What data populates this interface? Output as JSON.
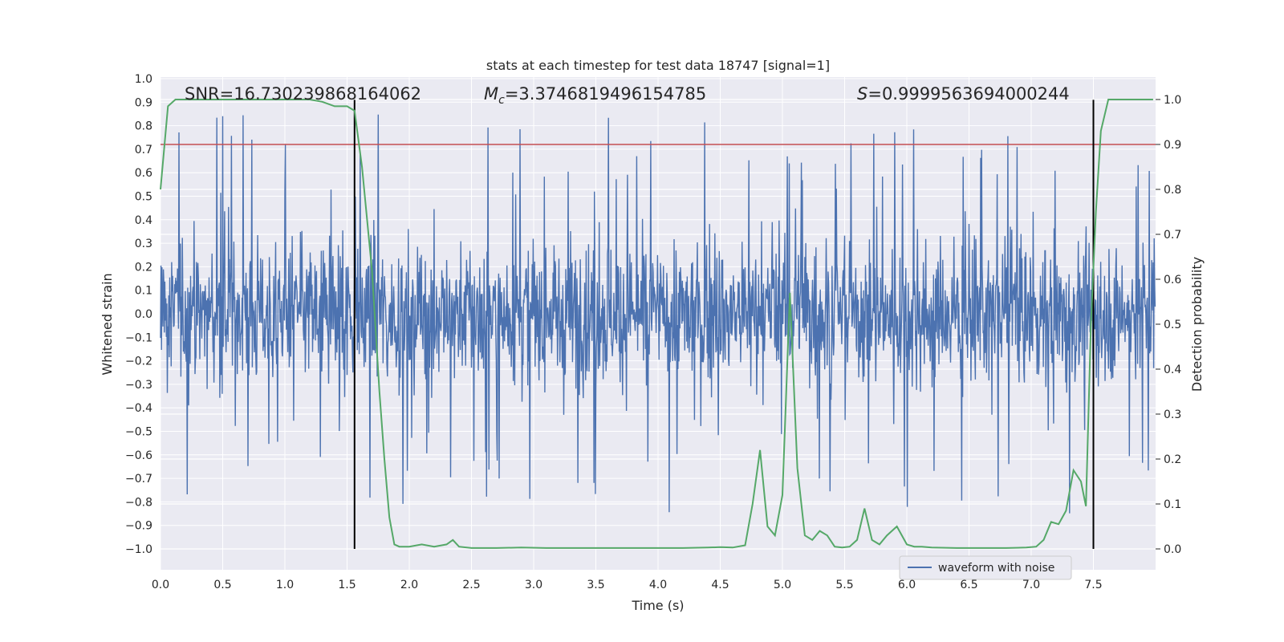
{
  "chart_data": {
    "type": "line",
    "title": "stats at each timestep for test data 18747 [signal=1]",
    "xlabel": "Time (s)",
    "ylabel": "Whitened strain",
    "y2label": "Detection probability",
    "xlim": [
      0.0,
      8.0
    ],
    "ylim": [
      -1.0,
      1.0
    ],
    "y2lim": [
      0.0,
      1.0
    ],
    "grid": true,
    "legend_position": "lower-center-right",
    "x_ticks": [
      "0.0",
      "0.5",
      "1.0",
      "1.5",
      "2.0",
      "2.5",
      "3.0",
      "3.5",
      "4.0",
      "4.5",
      "5.0",
      "5.5",
      "6.0",
      "6.5",
      "7.0",
      "7.5"
    ],
    "y_ticks": [
      "1.0",
      "0.9",
      "0.8",
      "0.7",
      "0.6",
      "0.5",
      "0.4",
      "0.3",
      "0.2",
      "0.1",
      "0.0",
      "−0.1",
      "−0.2",
      "−0.3",
      "−0.4",
      "−0.5",
      "−0.6",
      "−0.7",
      "−0.8",
      "−0.9",
      "−1.0"
    ],
    "y2_ticks": [
      "1.0",
      "0.9",
      "0.8",
      "0.7",
      "0.6",
      "0.5",
      "0.4",
      "0.3",
      "0.2",
      "0.1",
      "0.0"
    ],
    "annotations": {
      "snr": "SNR=16.730239868164062",
      "mc_symbol": "M",
      "mc_sub": "c",
      "mc_value": "=3.3746819496154785",
      "s_symbol": "S",
      "s_value": "=0.9999563694000244"
    },
    "threshold_line": {
      "axis": "y2",
      "value": 0.9,
      "color": "#c44e52"
    },
    "vertical_markers": {
      "x": [
        1.56,
        7.5
      ],
      "ymin": -1.0,
      "ymax": 0.91,
      "color": "#000000"
    },
    "series": [
      {
        "name": "waveform with noise",
        "axis": "y",
        "color": "#4c72b0",
        "kind": "dense-noise",
        "sample_rate": 256,
        "core_amplitude": 0.32,
        "typical_peak": 0.55,
        "max_peak": 0.85,
        "min_trough": -1.0
      },
      {
        "name": "",
        "axis": "y2",
        "color": "#55a868",
        "x": [
          0.0,
          0.06,
          0.12,
          0.2,
          0.4,
          0.6,
          0.8,
          1.0,
          1.2,
          1.3,
          1.4,
          1.5,
          1.56,
          1.62,
          1.7,
          1.76,
          1.8,
          1.84,
          1.88,
          1.92,
          2.0,
          2.1,
          2.2,
          2.3,
          2.35,
          2.4,
          2.5,
          2.7,
          2.9,
          3.1,
          3.4,
          3.7,
          4.0,
          4.2,
          4.4,
          4.5,
          4.6,
          4.7,
          4.76,
          4.82,
          4.88,
          4.94,
          5.0,
          5.06,
          5.12,
          5.18,
          5.24,
          5.3,
          5.36,
          5.42,
          5.48,
          5.54,
          5.6,
          5.66,
          5.72,
          5.78,
          5.84,
          5.92,
          6.0,
          6.06,
          6.12,
          6.2,
          6.4,
          6.6,
          6.8,
          6.96,
          7.04,
          7.1,
          7.16,
          7.22,
          7.28,
          7.34,
          7.4,
          7.44,
          7.48,
          7.52,
          7.56,
          7.62,
          7.7,
          7.8,
          7.9,
          7.98
        ],
        "y": [
          0.8,
          0.985,
          1.0,
          1.0,
          1.0,
          1.0,
          1.0,
          1.0,
          1.0,
          0.995,
          0.985,
          0.985,
          0.975,
          0.85,
          0.62,
          0.35,
          0.2,
          0.07,
          0.01,
          0.005,
          0.005,
          0.01,
          0.005,
          0.01,
          0.02,
          0.005,
          0.002,
          0.002,
          0.003,
          0.002,
          0.002,
          0.002,
          0.002,
          0.002,
          0.003,
          0.004,
          0.003,
          0.008,
          0.1,
          0.22,
          0.05,
          0.03,
          0.12,
          0.57,
          0.18,
          0.03,
          0.02,
          0.04,
          0.03,
          0.005,
          0.003,
          0.005,
          0.02,
          0.09,
          0.02,
          0.01,
          0.03,
          0.05,
          0.01,
          0.005,
          0.005,
          0.003,
          0.002,
          0.002,
          0.002,
          0.003,
          0.005,
          0.02,
          0.06,
          0.055,
          0.085,
          0.175,
          0.15,
          0.095,
          0.5,
          0.75,
          0.93,
          1.0,
          1.0,
          1.0,
          1.0,
          1.0
        ]
      }
    ]
  }
}
